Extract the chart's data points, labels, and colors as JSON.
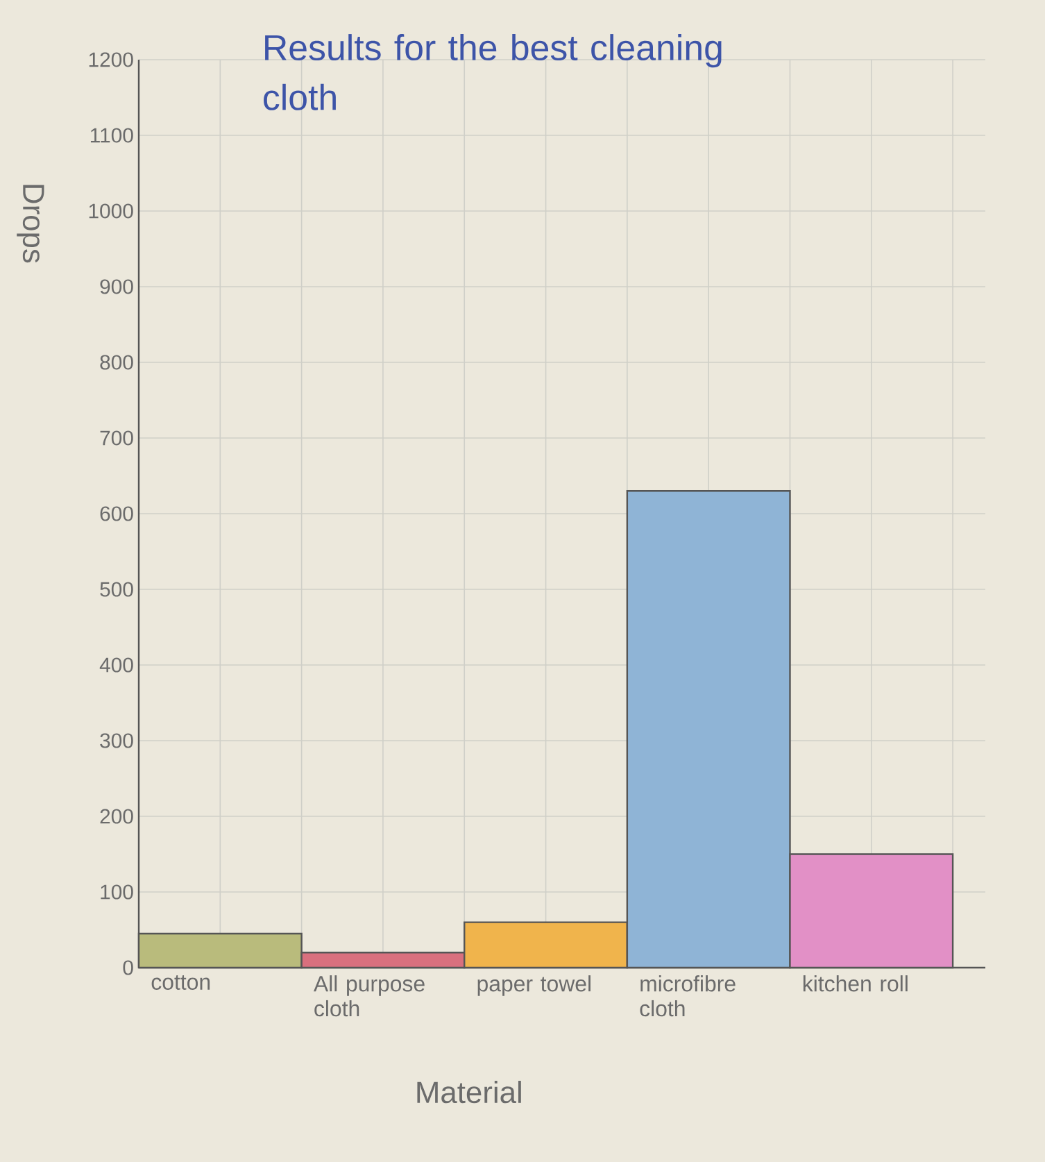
{
  "chart_data": {
    "type": "bar",
    "title": "Results for the best cleaning cloth",
    "xlabel": "Material",
    "ylabel": "Drops",
    "categories": [
      "cotton",
      "All purpose cloth",
      "paper towel",
      "microfibre cloth",
      "kitchen roll"
    ],
    "values": [
      45,
      20,
      60,
      630,
      150
    ],
    "colors": [
      "#b9bb7c",
      "#d9707e",
      "#f0b44c",
      "#8fb4d6",
      "#e290c6"
    ],
    "ylim": [
      0,
      1200
    ],
    "yticks": [
      0,
      100,
      200,
      300,
      400,
      500,
      600,
      700,
      800,
      900,
      1000,
      1100,
      1200
    ],
    "grid": true
  }
}
